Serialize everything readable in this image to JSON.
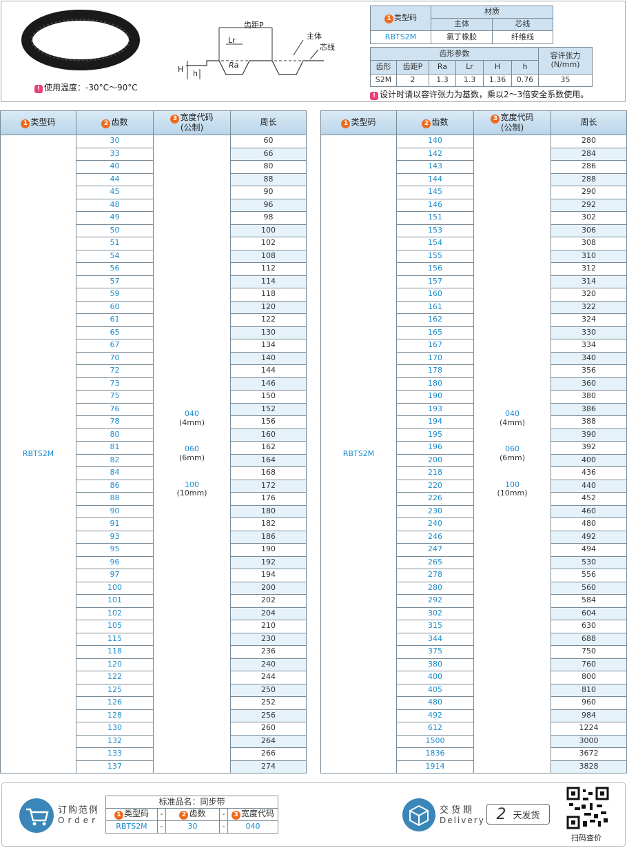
{
  "top": {
    "temp_note": "使用温度：-30°C～90°C",
    "diagram": {
      "pitch": "齿距P",
      "lr": "Lr",
      "body": "主体",
      "core": "芯线",
      "ra": "Ra",
      "big_h": "H",
      "small_h": "h"
    },
    "material_table": {
      "type_num": "1",
      "type_header": "类型码",
      "material_header": "材质",
      "body_header": "主体",
      "core_header": "芯线",
      "row": [
        "RBTS2M",
        "氯丁橡胶",
        "纤维线"
      ]
    },
    "tooth_table": {
      "group_header": "齿形参数",
      "tension_header": "容许张力",
      "tension_unit": "(N/mm)",
      "headers": [
        "齿形",
        "齿距P",
        "Ra",
        "Lr",
        "H",
        "h"
      ],
      "row": [
        "S2M",
        "2",
        "1.3",
        "1.3",
        "1.36",
        "0.76",
        "35"
      ]
    },
    "design_note": "设计时请以容许张力为基数，乘以2～3倍安全系数使用。"
  },
  "table_headers": [
    {
      "num": "1",
      "label": "类型码"
    },
    {
      "num": "2",
      "label": "齿数"
    },
    {
      "num": "3",
      "label": "宽度代码",
      "sub": "(公制)"
    },
    {
      "label": "周长"
    }
  ],
  "tables": [
    {
      "type_code": "RBTS2M",
      "widths": [
        {
          "code": "040",
          "metric": "(4mm)"
        },
        {
          "code": "060",
          "metric": "(6mm)"
        },
        {
          "code": "100",
          "metric": "(10mm)"
        }
      ],
      "rows": [
        [
          30,
          60
        ],
        [
          33,
          66
        ],
        [
          40,
          80
        ],
        [
          44,
          88
        ],
        [
          45,
          90
        ],
        [
          48,
          96
        ],
        [
          49,
          98
        ],
        [
          50,
          100
        ],
        [
          51,
          102
        ],
        [
          54,
          108
        ],
        [
          56,
          112
        ],
        [
          57,
          114
        ],
        [
          59,
          118
        ],
        [
          60,
          120
        ],
        [
          61,
          122
        ],
        [
          65,
          130
        ],
        [
          67,
          134
        ],
        [
          70,
          140
        ],
        [
          72,
          144
        ],
        [
          73,
          146
        ],
        [
          75,
          150
        ],
        [
          76,
          152
        ],
        [
          78,
          156
        ],
        [
          80,
          160
        ],
        [
          81,
          162
        ],
        [
          82,
          164
        ],
        [
          84,
          168
        ],
        [
          86,
          172
        ],
        [
          88,
          176
        ],
        [
          90,
          180
        ],
        [
          91,
          182
        ],
        [
          93,
          186
        ],
        [
          95,
          190
        ],
        [
          96,
          192
        ],
        [
          97,
          194
        ],
        [
          100,
          200
        ],
        [
          101,
          202
        ],
        [
          102,
          204
        ],
        [
          105,
          210
        ],
        [
          115,
          230
        ],
        [
          118,
          236
        ],
        [
          120,
          240
        ],
        [
          122,
          244
        ],
        [
          125,
          250
        ],
        [
          126,
          252
        ],
        [
          128,
          256
        ],
        [
          130,
          260
        ],
        [
          132,
          264
        ],
        [
          133,
          266
        ],
        [
          137,
          274
        ]
      ]
    },
    {
      "type_code": "RBTS2M",
      "widths": [
        {
          "code": "040",
          "metric": "(4mm)"
        },
        {
          "code": "060",
          "metric": "(6mm)"
        },
        {
          "code": "100",
          "metric": "(10mm)"
        }
      ],
      "rows": [
        [
          140,
          280
        ],
        [
          142,
          284
        ],
        [
          143,
          286
        ],
        [
          144,
          288
        ],
        [
          145,
          290
        ],
        [
          146,
          292
        ],
        [
          151,
          302
        ],
        [
          153,
          306
        ],
        [
          154,
          308
        ],
        [
          155,
          310
        ],
        [
          156,
          312
        ],
        [
          157,
          314
        ],
        [
          160,
          320
        ],
        [
          161,
          322
        ],
        [
          162,
          324
        ],
        [
          165,
          330
        ],
        [
          167,
          334
        ],
        [
          170,
          340
        ],
        [
          178,
          356
        ],
        [
          180,
          360
        ],
        [
          190,
          380
        ],
        [
          193,
          386
        ],
        [
          194,
          388
        ],
        [
          195,
          390
        ],
        [
          196,
          392
        ],
        [
          200,
          400
        ],
        [
          218,
          436
        ],
        [
          220,
          440
        ],
        [
          226,
          452
        ],
        [
          230,
          460
        ],
        [
          240,
          480
        ],
        [
          246,
          492
        ],
        [
          247,
          494
        ],
        [
          265,
          530
        ],
        [
          278,
          556
        ],
        [
          280,
          560
        ],
        [
          292,
          584
        ],
        [
          302,
          604
        ],
        [
          315,
          630
        ],
        [
          344,
          688
        ],
        [
          375,
          750
        ],
        [
          380,
          760
        ],
        [
          400,
          800
        ],
        [
          405,
          810
        ],
        [
          480,
          960
        ],
        [
          492,
          984
        ],
        [
          612,
          1224
        ],
        [
          1500,
          3000
        ],
        [
          1836,
          3672
        ],
        [
          1914,
          3828
        ]
      ]
    }
  ],
  "order": {
    "title": "订购范例",
    "subtitle": "Order",
    "product_name": "标准品名：同步带",
    "separator": "-",
    "example": [
      "RBTS2M",
      "30",
      "040"
    ]
  },
  "delivery": {
    "title": "交货期",
    "subtitle": "Delivery",
    "days": "2",
    "unit": "天发货"
  },
  "qr_note": "扫码查价"
}
